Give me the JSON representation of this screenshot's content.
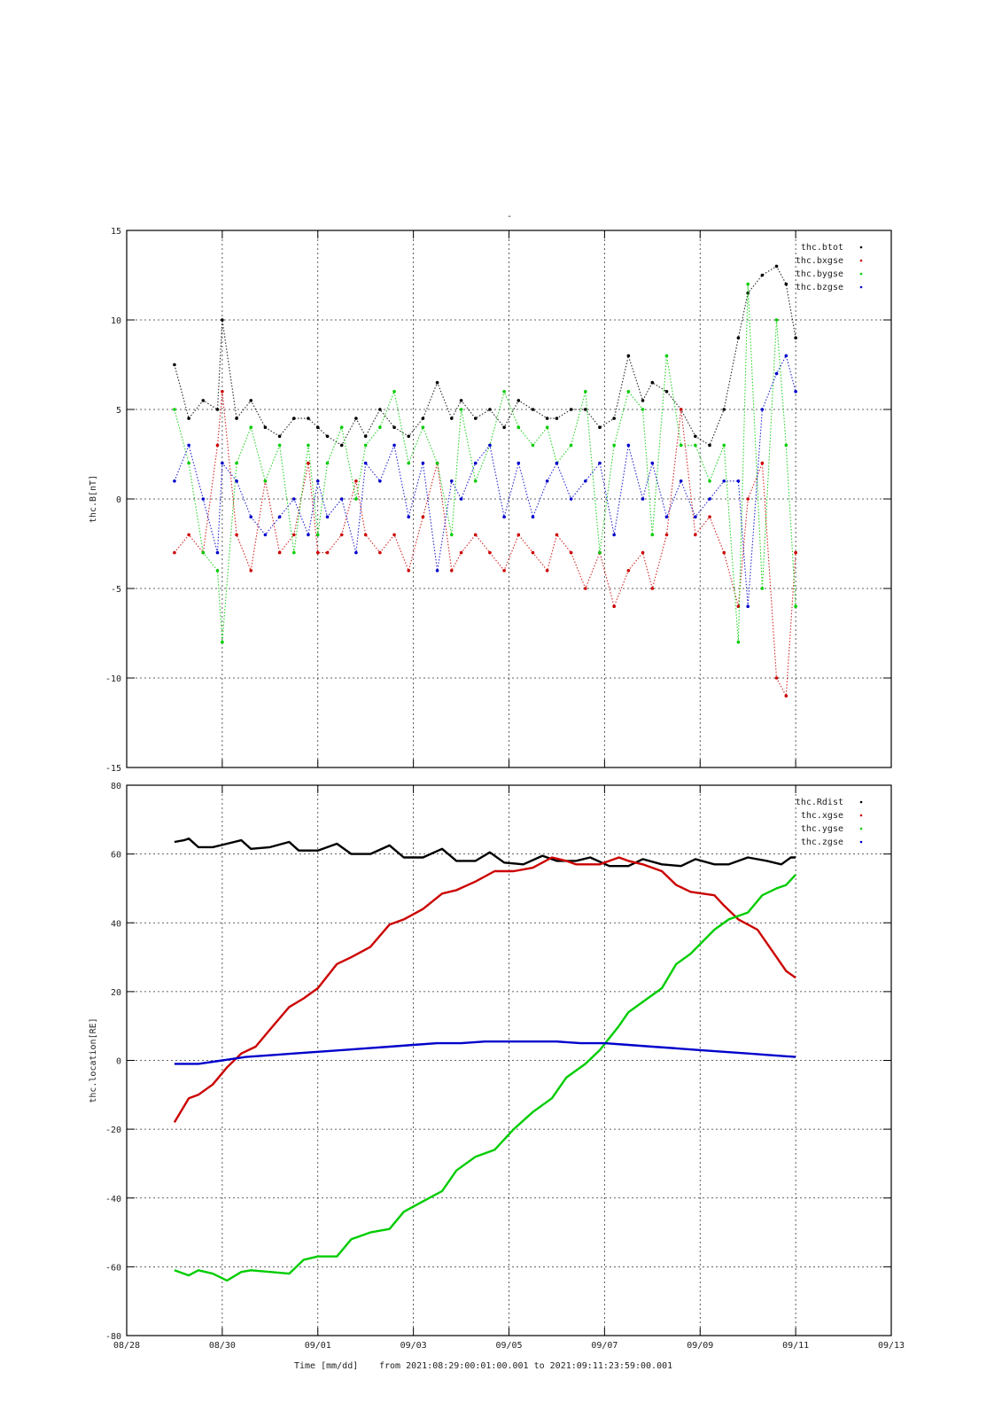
{
  "figure": {
    "title": "-",
    "footer": {
      "time_label": "Time [mm/dd]",
      "range_text": "from 2021:08:29:00:01:00.001  to  2021:09:11:23:59:00.001"
    },
    "colors": {
      "black": "#000000",
      "red": "#cc0000",
      "green": "#00cc00",
      "blue": "#0000cc"
    }
  },
  "chart_data": [
    {
      "type": "scatter",
      "ylabel": "thc.B[nT]",
      "ylim": [
        -15,
        15
      ],
      "yticks": [
        15,
        10,
        5,
        0,
        -5,
        -10,
        -15
      ],
      "xticks": [
        "08/28",
        "08/30",
        "09/01",
        "09/03",
        "09/05",
        "09/07",
        "09/09",
        "09/11",
        "09/13"
      ],
      "xlim": [
        "08/28",
        "09/13"
      ],
      "grid": true,
      "legend_position": "top-right",
      "series": [
        {
          "name": "thc.btot",
          "color": "#000000",
          "x_days": [
            1.0,
            1.3,
            1.6,
            1.9,
            2.0,
            2.3,
            2.6,
            2.9,
            3.2,
            3.5,
            3.8,
            4.0,
            4.2,
            4.5,
            4.8,
            5.0,
            5.3,
            5.6,
            5.9,
            6.2,
            6.5,
            6.8,
            7.0,
            7.3,
            7.6,
            7.9,
            8.2,
            8.5,
            8.8,
            9.0,
            9.3,
            9.6,
            9.9,
            10.2,
            10.5,
            10.8,
            11.0,
            11.3,
            11.6,
            11.9,
            12.2,
            12.5,
            12.8,
            13.0,
            13.3,
            13.6,
            13.8,
            14.0
          ],
          "values": [
            7.5,
            4.5,
            5.5,
            5,
            10,
            4.5,
            5.5,
            4,
            3.5,
            4.5,
            4.5,
            4,
            3.5,
            3,
            4.5,
            3.5,
            5,
            4,
            3.5,
            4.5,
            6.5,
            4.5,
            5.5,
            4.5,
            5,
            4,
            5.5,
            5,
            4.5,
            4.5,
            5,
            5,
            4,
            4.5,
            8,
            5.5,
            6.5,
            6,
            5,
            3.5,
            3,
            5,
            9,
            11.5,
            12.5,
            13,
            12,
            9
          ]
        },
        {
          "name": "thc.bxgse",
          "color": "#cc0000",
          "x_days": [
            1.0,
            1.3,
            1.6,
            1.9,
            2.0,
            2.3,
            2.6,
            2.9,
            3.2,
            3.5,
            3.8,
            4.0,
            4.2,
            4.5,
            4.8,
            5.0,
            5.3,
            5.6,
            5.9,
            6.2,
            6.5,
            6.8,
            7.0,
            7.3,
            7.6,
            7.9,
            8.2,
            8.5,
            8.8,
            9.0,
            9.3,
            9.6,
            9.9,
            10.2,
            10.5,
            10.8,
            11.0,
            11.3,
            11.6,
            11.9,
            12.2,
            12.5,
            12.8,
            13.0,
            13.3,
            13.6,
            13.8,
            14.0
          ],
          "values": [
            -3,
            -2,
            -3,
            3,
            6,
            -2,
            -4,
            1,
            -3,
            -2,
            2,
            -3,
            -3,
            -2,
            1,
            -2,
            -3,
            -2,
            -4,
            -1,
            2,
            -4,
            -3,
            -2,
            -3,
            -4,
            -2,
            -3,
            -4,
            -2,
            -3,
            -5,
            -3,
            -6,
            -4,
            -3,
            -5,
            -2,
            5,
            -2,
            -1,
            -3,
            -6,
            0,
            2,
            -10,
            -11,
            -3
          ]
        },
        {
          "name": "thc.bygse",
          "color": "#00cc00",
          "x_days": [
            1.0,
            1.3,
            1.6,
            1.9,
            2.0,
            2.3,
            2.6,
            2.9,
            3.2,
            3.5,
            3.8,
            4.0,
            4.2,
            4.5,
            4.8,
            5.0,
            5.3,
            5.6,
            5.9,
            6.2,
            6.5,
            6.8,
            7.0,
            7.3,
            7.6,
            7.9,
            8.2,
            8.5,
            8.8,
            9.0,
            9.3,
            9.6,
            9.9,
            10.2,
            10.5,
            10.8,
            11.0,
            11.3,
            11.6,
            11.9,
            12.2,
            12.5,
            12.8,
            13.0,
            13.3,
            13.6,
            13.8,
            14.0
          ],
          "values": [
            5,
            2,
            -3,
            -4,
            -8,
            2,
            4,
            1,
            3,
            -3,
            3,
            -2,
            2,
            4,
            0,
            3,
            4,
            6,
            2,
            4,
            2,
            -2,
            5,
            1,
            3,
            6,
            4,
            3,
            4,
            2,
            3,
            6,
            -3,
            3,
            6,
            5,
            -2,
            8,
            3,
            3,
            1,
            3,
            -8,
            12,
            -5,
            10,
            3,
            -6
          ]
        },
        {
          "name": "thc.bzgse",
          "color": "#0000cc",
          "x_days": [
            1.0,
            1.3,
            1.6,
            1.9,
            2.0,
            2.3,
            2.6,
            2.9,
            3.2,
            3.5,
            3.8,
            4.0,
            4.2,
            4.5,
            4.8,
            5.0,
            5.3,
            5.6,
            5.9,
            6.2,
            6.5,
            6.8,
            7.0,
            7.3,
            7.6,
            7.9,
            8.2,
            8.5,
            8.8,
            9.0,
            9.3,
            9.6,
            9.9,
            10.2,
            10.5,
            10.8,
            11.0,
            11.3,
            11.6,
            11.9,
            12.2,
            12.5,
            12.8,
            13.0,
            13.3,
            13.6,
            13.8,
            14.0
          ],
          "values": [
            1,
            3,
            0,
            -3,
            2,
            1,
            -1,
            -2,
            -1,
            0,
            -2,
            1,
            -1,
            0,
            -3,
            2,
            1,
            3,
            -1,
            2,
            -4,
            1,
            0,
            2,
            3,
            -1,
            2,
            -1,
            1,
            2,
            0,
            1,
            2,
            -2,
            3,
            0,
            2,
            -1,
            1,
            -1,
            0,
            1,
            1,
            -6,
            5,
            7,
            8,
            6
          ]
        }
      ]
    },
    {
      "type": "line",
      "ylabel": "thc.location[RE]",
      "ylim": [
        -80,
        80
      ],
      "yticks": [
        80,
        60,
        40,
        20,
        0,
        -20,
        -40,
        -60,
        -80
      ],
      "xticks": [
        "08/28",
        "08/30",
        "09/01",
        "09/03",
        "09/05",
        "09/07",
        "09/09",
        "09/11",
        "09/13"
      ],
      "xlim": [
        "08/28",
        "09/13"
      ],
      "grid": true,
      "legend_position": "top-right",
      "series": [
        {
          "name": "thc.Rdist",
          "color": "#000000",
          "x_days": [
            1.0,
            1.2,
            1.3,
            1.5,
            1.8,
            2.1,
            2.4,
            2.6,
            3.0,
            3.4,
            3.6,
            4.0,
            4.4,
            4.7,
            5.1,
            5.5,
            5.8,
            6.2,
            6.6,
            6.9,
            7.3,
            7.6,
            7.9,
            8.3,
            8.7,
            9.0,
            9.4,
            9.7,
            10.1,
            10.5,
            10.8,
            11.2,
            11.6,
            11.9,
            12.3,
            12.6,
            13.0,
            13.4,
            13.7,
            13.9,
            14.0
          ],
          "values": [
            63.5,
            64,
            64.5,
            62,
            62,
            63,
            64,
            61.5,
            62,
            63.5,
            61,
            61,
            63,
            60,
            60,
            62.5,
            59,
            59,
            61.5,
            58,
            58,
            60.5,
            57.5,
            57,
            59.5,
            58,
            58,
            59,
            56.5,
            56.5,
            58.5,
            57,
            56.5,
            58.5,
            57,
            57,
            59,
            58,
            57,
            59,
            59
          ]
        },
        {
          "name": "thc.xgse",
          "color": "#cc0000",
          "x_days": [
            1.0,
            1.3,
            1.5,
            1.8,
            2.1,
            2.4,
            2.7,
            3.0,
            3.4,
            3.7,
            4.0,
            4.4,
            4.7,
            5.1,
            5.5,
            5.8,
            6.2,
            6.6,
            6.9,
            7.3,
            7.7,
            8.1,
            8.5,
            8.9,
            9.2,
            9.4,
            9.6,
            9.9,
            10.3,
            10.5,
            10.8,
            11.2,
            11.5,
            11.8,
            12.3,
            12.5,
            12.8,
            13.2,
            13.5,
            13.8,
            14.0
          ],
          "values": [
            -18,
            -11,
            -10,
            -7,
            -2,
            2,
            4,
            9,
            15.5,
            18,
            21,
            28,
            30,
            33,
            39.5,
            41,
            44,
            48.5,
            49.5,
            52,
            55,
            55,
            56,
            59,
            58,
            57,
            57,
            57,
            59,
            58,
            57,
            55,
            51,
            49,
            48,
            45,
            41,
            38,
            32,
            26,
            24
          ]
        },
        {
          "name": "thc.ygse",
          "color": "#00cc00",
          "x_days": [
            1.0,
            1.3,
            1.5,
            1.8,
            2.1,
            2.4,
            2.6,
            3.0,
            3.4,
            3.7,
            4.0,
            4.4,
            4.7,
            5.1,
            5.5,
            5.8,
            6.2,
            6.6,
            6.9,
            7.3,
            7.7,
            8.1,
            8.5,
            8.9,
            9.2,
            9.6,
            9.9,
            10.3,
            10.5,
            10.8,
            11.2,
            11.5,
            11.8,
            12.3,
            12.6,
            13.0,
            13.3,
            13.6,
            13.8,
            14.0
          ],
          "values": [
            -61,
            -62.5,
            -61,
            -62,
            -64,
            -61.5,
            -61,
            -61.5,
            -62,
            -58,
            -57,
            -57,
            -52,
            -50,
            -49,
            -44,
            -41,
            -38,
            -32,
            -28,
            -26,
            -20,
            -15,
            -11,
            -5,
            -1,
            3,
            10,
            14,
            17,
            21,
            28,
            31,
            38,
            41,
            43,
            48,
            50,
            51,
            54
          ]
        },
        {
          "name": "thc.zgse",
          "color": "#0000cc",
          "x_days": [
            1.0,
            1.5,
            2.0,
            2.5,
            3.0,
            3.5,
            4.0,
            4.5,
            5.0,
            5.5,
            6.0,
            6.5,
            7.0,
            7.5,
            8.0,
            8.5,
            9.0,
            9.5,
            10.0,
            10.5,
            11.0,
            11.5,
            12.0,
            12.5,
            13.0,
            13.5,
            14.0
          ],
          "values": [
            -1,
            -1,
            0,
            1,
            1.5,
            2,
            2.5,
            3,
            3.5,
            4,
            4.5,
            5,
            5,
            5.5,
            5.5,
            5.5,
            5.5,
            5,
            5,
            4.5,
            4,
            3.5,
            3,
            2.5,
            2,
            1.5,
            1
          ]
        }
      ]
    }
  ]
}
